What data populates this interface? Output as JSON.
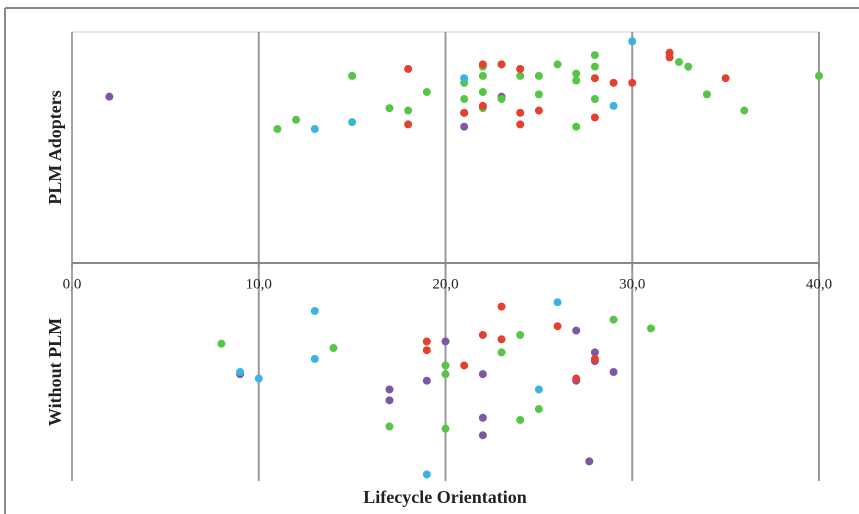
{
  "chart_data": {
    "type": "scatter",
    "x_label": "Lifecycle Orientation",
    "xlim": [
      0,
      40
    ],
    "xticks": [
      {
        "value": 0,
        "label": "0,0"
      },
      {
        "value": 10,
        "label": "10,0"
      },
      {
        "value": 20,
        "label": "20,0"
      },
      {
        "value": 30,
        "label": "30,0"
      },
      {
        "value": 40,
        "label": "40,0"
      }
    ],
    "grid": true,
    "panels": [
      {
        "label": "PLM Adopters",
        "ylim": [
          0,
          10
        ],
        "series": [
          {
            "color": "#7e57a4",
            "x": [
              2,
              21,
              23
            ],
            "values": [
              7.2,
              5.9,
              7.2
            ]
          },
          {
            "color": "#55c645",
            "x": [
              11,
              12,
              15,
              17,
              18,
              19,
              21,
              21,
              21,
              22,
              22,
              22,
              22,
              23,
              23,
              24,
              25,
              25,
              26,
              27,
              27,
              27,
              28,
              28,
              28,
              32.5,
              33,
              34,
              36,
              40
            ],
            "values": [
              5.8,
              6.2,
              8.1,
              6.7,
              6.6,
              7.4,
              7.8,
              7.1,
              6.5,
              8.5,
              8.1,
              7.4,
              6.7,
              8.6,
              7.1,
              8.1,
              8.1,
              7.3,
              8.6,
              8.2,
              7.9,
              5.9,
              9.0,
              8.5,
              7.1,
              8.7,
              8.5,
              7.3,
              6.6,
              8.1
            ]
          },
          {
            "color": "#e4402e",
            "x": [
              18,
              18,
              21,
              22,
              22,
              23,
              24,
              24,
              24,
              25,
              28,
              28,
              29,
              30,
              32,
              32,
              35
            ],
            "values": [
              8.4,
              6.0,
              6.5,
              8.6,
              6.8,
              8.6,
              8.4,
              6.5,
              6.0,
              6.6,
              8.0,
              6.3,
              7.8,
              7.8,
              9.1,
              8.9,
              8.0
            ]
          },
          {
            "color": "#3bb3e0",
            "x": [
              13,
              15,
              21,
              30,
              29
            ],
            "values": [
              5.8,
              6.1,
              8.0,
              9.6,
              6.8
            ]
          }
        ]
      },
      {
        "label": "Without PLM",
        "ylim": [
          0,
          10
        ],
        "series": [
          {
            "color": "#7e57a4",
            "x": [
              9,
              17,
              17,
              19,
              20,
              22,
              22,
              22,
              27,
              27,
              28,
              28,
              29,
              27.7
            ],
            "values": [
              4.9,
              4.2,
              3.7,
              4.6,
              6.4,
              4.9,
              2.9,
              2.1,
              6.9,
              4.6,
              5.9,
              5.5,
              5.0,
              0.9
            ]
          },
          {
            "color": "#55c645",
            "x": [
              8,
              14,
              17,
              20,
              20,
              20,
              23,
              24,
              24,
              25,
              29,
              31
            ],
            "values": [
              6.3,
              6.1,
              2.5,
              5.3,
              4.9,
              2.4,
              5.9,
              6.7,
              2.8,
              3.3,
              7.4,
              7.0
            ]
          },
          {
            "color": "#e4402e",
            "x": [
              19,
              19,
              21,
              22,
              23,
              23,
              26,
              27,
              28
            ],
            "values": [
              6.4,
              6.0,
              5.3,
              6.7,
              8.0,
              6.5,
              7.1,
              4.7,
              5.6
            ]
          },
          {
            "color": "#3bb3e0",
            "x": [
              9,
              10,
              13,
              13,
              19,
              25,
              26
            ],
            "values": [
              5.0,
              4.7,
              7.8,
              5.6,
              0.3,
              4.2,
              8.2
            ]
          }
        ]
      }
    ]
  }
}
